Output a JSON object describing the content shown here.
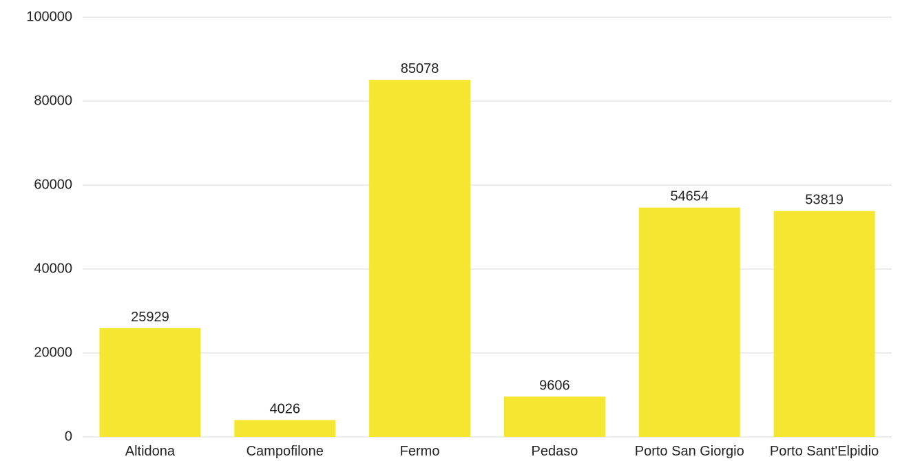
{
  "chart_data": {
    "type": "bar",
    "categories": [
      "Altidona",
      "Campofilone",
      "Fermo",
      "Pedaso",
      "Porto San Giorgio",
      "Porto Sant'Elpidio"
    ],
    "values": [
      25929,
      4026,
      85078,
      9606,
      54654,
      53819
    ],
    "yticks": [
      "0",
      "20000",
      "40000",
      "60000",
      "80000",
      "100000"
    ],
    "ylim": [
      0,
      100000
    ],
    "grid": true,
    "legend": "none",
    "title": "",
    "xlabel": "",
    "ylabel": "",
    "bar_color": "#f5e632",
    "grid_color": "#d9d9d9",
    "text_color": "#222222"
  }
}
